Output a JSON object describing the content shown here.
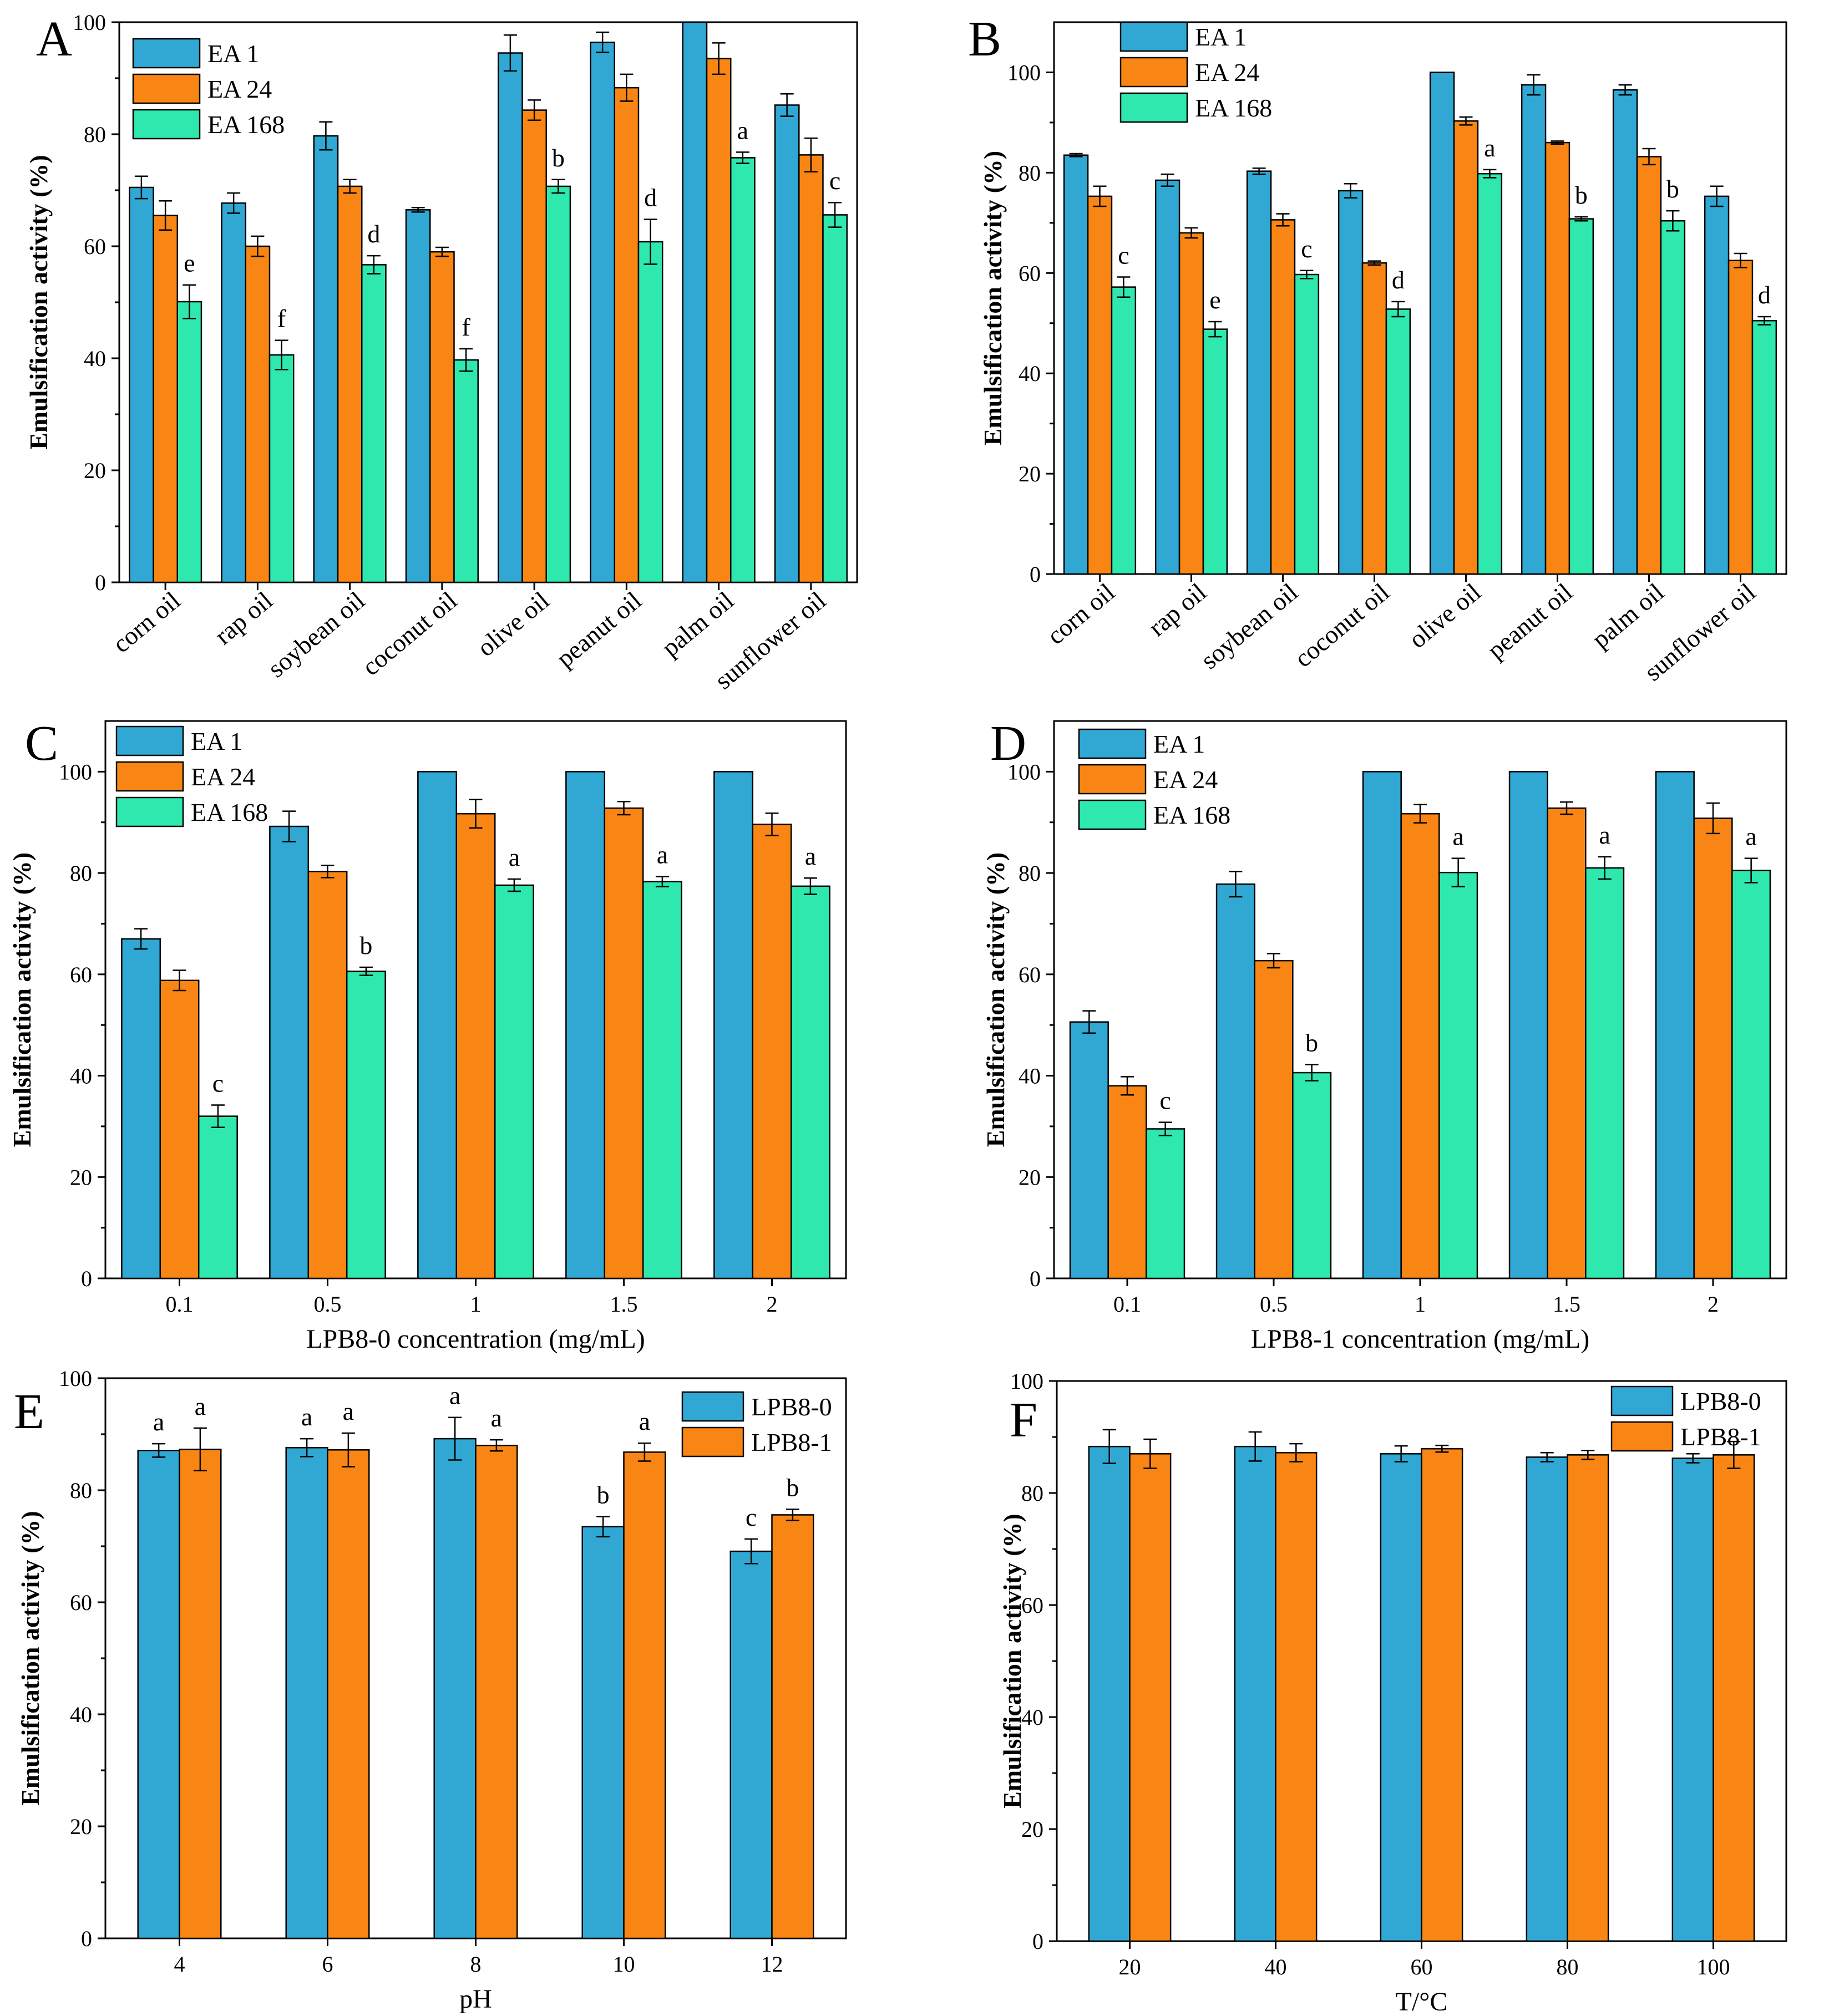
{
  "colors": {
    "c1": "#31A8D4",
    "c2": "#F98614",
    "c3": "#2EE8AE",
    "axis": "#000000"
  },
  "chart_data": [
    {
      "panel": "A",
      "type": "bar",
      "categories": [
        "corn oil",
        "rap oil",
        "soybean oil",
        "coconut oil",
        "olive oil",
        "peanut oil",
        "palm oil",
        "sunflower oil"
      ],
      "series": [
        {
          "name": "EA 1",
          "values": [
            70.5,
            67.7,
            79.7,
            66.5,
            94.5,
            96.4,
            100,
            85.2
          ],
          "errors": [
            2,
            1.8,
            2.5,
            0.4,
            3.2,
            1.8,
            0,
            2
          ]
        },
        {
          "name": "EA 24",
          "values": [
            65.5,
            60,
            70.7,
            59,
            84.3,
            88.3,
            93.5,
            76.3
          ],
          "errors": [
            2.6,
            1.8,
            1.2,
            0.8,
            1.8,
            2.4,
            2.8,
            3
          ]
        },
        {
          "name": "EA 168",
          "values": [
            50.1,
            40.6,
            56.7,
            39.7,
            70.7,
            60.8,
            75.8,
            65.6
          ],
          "errors": [
            3,
            2.6,
            1.6,
            2,
            1.2,
            4,
            1,
            2.2
          ]
        }
      ],
      "letters": [
        "e",
        "f",
        "d",
        "f",
        "b",
        "d",
        "a",
        "c"
      ],
      "xlabel": "",
      "ylabel": "Emulsification activity (%)",
      "ylim": [
        0,
        100
      ],
      "yticks": [
        0,
        20,
        40,
        60,
        80,
        100
      ],
      "rotate_x": true
    },
    {
      "panel": "B",
      "type": "bar",
      "categories": [
        "corn oil",
        "rap oil",
        "soybean oil",
        "coconut oil",
        "olive oil",
        "peanut oil",
        "palm oil",
        "sunflower oil"
      ],
      "series": [
        {
          "name": "EA 1",
          "values": [
            83.5,
            78.5,
            80.3,
            76.4,
            100,
            97.5,
            96.5,
            75.3
          ],
          "errors": [
            0.3,
            1.2,
            0.6,
            1.4,
            0,
            2,
            1,
            2
          ]
        },
        {
          "name": "EA 24",
          "values": [
            75.3,
            68,
            70.6,
            62,
            90.3,
            86,
            83.2,
            62.5
          ],
          "errors": [
            2,
            1,
            1.2,
            0.4,
            0.8,
            0.3,
            1.6,
            1.4
          ]
        },
        {
          "name": "EA 168",
          "values": [
            57.2,
            48.8,
            59.7,
            52.8,
            79.8,
            70.8,
            70.4,
            50.5
          ],
          "errors": [
            2,
            1.5,
            0.8,
            1.5,
            0.8,
            0.4,
            2,
            0.8
          ]
        }
      ],
      "letters": [
        "c",
        "e",
        "c",
        "d",
        "a",
        "b",
        "b",
        "d"
      ],
      "xlabel": "",
      "ylabel": "Emulsification activity (%)",
      "ylim": [
        0,
        110
      ],
      "yticks": [
        0,
        20,
        40,
        60,
        80,
        100
      ],
      "rotate_x": true
    },
    {
      "panel": "C",
      "type": "bar",
      "categories": [
        "0.1",
        "0.5",
        "1",
        "1.5",
        "2"
      ],
      "series": [
        {
          "name": "EA 1",
          "values": [
            67,
            89.2,
            100,
            100,
            100
          ],
          "errors": [
            2,
            3,
            0,
            0,
            0
          ]
        },
        {
          "name": "EA 24",
          "values": [
            58.8,
            80.3,
            91.7,
            92.8,
            89.6
          ],
          "errors": [
            2,
            1.2,
            2.8,
            1.3,
            2.2
          ]
        },
        {
          "name": "EA 168",
          "values": [
            32,
            60.6,
            77.6,
            78.3,
            77.4
          ],
          "errors": [
            2.2,
            0.8,
            1.2,
            1,
            1.6
          ]
        }
      ],
      "letters": [
        "c",
        "b",
        "a",
        "a",
        "a"
      ],
      "xlabel": "LPB8-0 concentration (mg/mL)",
      "ylabel": "Emulsification activity (%)",
      "ylim": [
        0,
        110
      ],
      "yticks": [
        0,
        20,
        40,
        60,
        80,
        100
      ],
      "rotate_x": false
    },
    {
      "panel": "D",
      "type": "bar",
      "categories": [
        "0.1",
        "0.5",
        "1",
        "1.5",
        "2"
      ],
      "series": [
        {
          "name": "EA 1",
          "values": [
            50.6,
            77.8,
            100,
            100,
            100
          ],
          "errors": [
            2.2,
            2.5,
            0,
            0,
            0
          ]
        },
        {
          "name": "EA 24",
          "values": [
            38,
            62.7,
            91.7,
            92.8,
            90.8
          ],
          "errors": [
            1.8,
            1.4,
            1.8,
            1.2,
            3
          ]
        },
        {
          "name": "EA 168",
          "values": [
            29.5,
            40.6,
            80.1,
            81,
            80.5
          ],
          "errors": [
            1.3,
            1.6,
            2.8,
            2.2,
            2.4
          ]
        }
      ],
      "letters": [
        "c",
        "b",
        "a",
        "a",
        "a"
      ],
      "xlabel": "LPB8-1 concentration (mg/mL)",
      "ylabel": "Emulsification activity (%)",
      "ylim": [
        0,
        110
      ],
      "yticks": [
        0,
        20,
        40,
        60,
        80,
        100
      ],
      "rotate_x": false
    },
    {
      "panel": "E",
      "type": "bar",
      "categories": [
        "4",
        "6",
        "8",
        "10",
        "12"
      ],
      "series": [
        {
          "name": "LPB8-0",
          "values": [
            87.1,
            87.6,
            89.2,
            73.5,
            69.1
          ],
          "errors": [
            1.2,
            1.6,
            3.8,
            1.8,
            2.2
          ]
        },
        {
          "name": "LPB8-1",
          "values": [
            87.3,
            87.2,
            88,
            86.8,
            75.6
          ],
          "errors": [
            3.8,
            3,
            1,
            1.6,
            1
          ]
        }
      ],
      "letters": [
        [
          "a",
          "a"
        ],
        [
          "a",
          "a"
        ],
        [
          "a",
          "a"
        ],
        [
          "b",
          "a"
        ],
        [
          "c",
          "b"
        ]
      ],
      "xlabel": "pH",
      "ylabel": "Emulsification activity (%)",
      "ylim": [
        0,
        100
      ],
      "yticks": [
        0,
        20,
        40,
        60,
        80,
        100
      ],
      "rotate_x": false
    },
    {
      "panel": "F",
      "type": "bar",
      "categories": [
        "20",
        "40",
        "60",
        "80",
        "100"
      ],
      "series": [
        {
          "name": "LPB8-0",
          "values": [
            88.3,
            88.3,
            87,
            86.4,
            86.2
          ],
          "errors": [
            3,
            2.6,
            1.4,
            0.8,
            0.8
          ]
        },
        {
          "name": "LPB8-1",
          "values": [
            87,
            87.2,
            87.9,
            86.8,
            86.8
          ],
          "errors": [
            2.6,
            1.6,
            0.6,
            0.8,
            2.4
          ]
        }
      ],
      "letters": [],
      "xlabel": "T/°C",
      "ylabel": "Emulsification activity (%)",
      "ylim": [
        0,
        100
      ],
      "yticks": [
        0,
        20,
        40,
        60,
        80,
        100
      ],
      "rotate_x": false
    }
  ]
}
